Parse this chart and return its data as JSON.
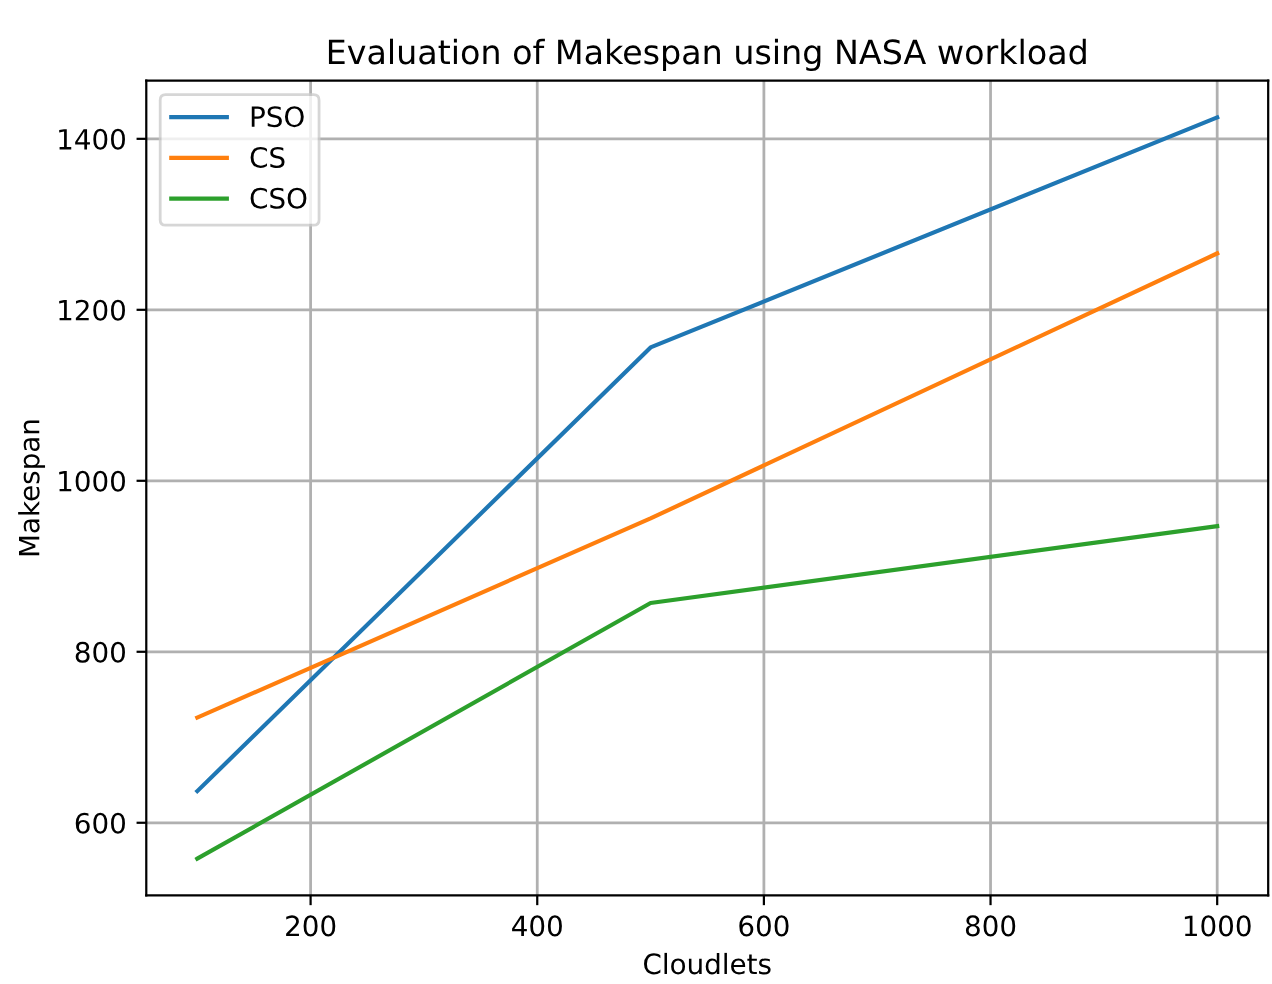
{
  "chart_data": {
    "type": "line",
    "title": "Evaluation of Makespan using NASA workload",
    "xlabel": "Cloudlets",
    "ylabel": "Makespan",
    "x": [
      100,
      500,
      1000
    ],
    "series": [
      {
        "name": "PSO",
        "color": "#1f77b4",
        "values": [
          637,
          1156,
          1425
        ]
      },
      {
        "name": "CS",
        "color": "#ff7f0e",
        "values": [
          723,
          956,
          1266
        ]
      },
      {
        "name": "CSO",
        "color": "#2ca02c",
        "values": [
          558,
          857,
          947
        ]
      }
    ],
    "xlim": [
      55,
      1045
    ],
    "ylim": [
      515,
      1468
    ],
    "xticks": [
      200,
      400,
      600,
      800,
      1000
    ],
    "yticks": [
      600,
      800,
      1000,
      1200,
      1400
    ],
    "grid": true,
    "legend": "top left",
    "marker": "none",
    "line_style": "solid"
  }
}
